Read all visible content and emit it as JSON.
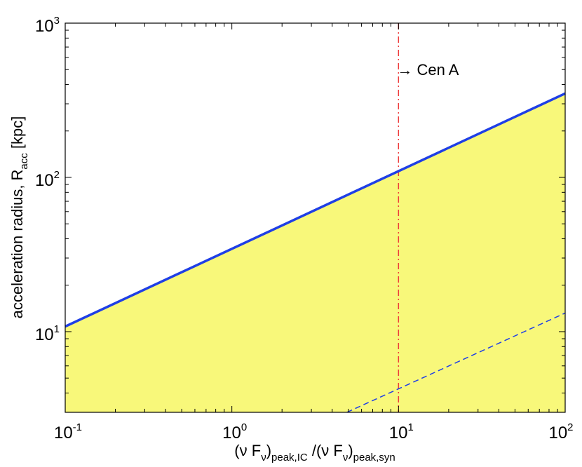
{
  "chart_data": {
    "type": "line",
    "scale": {
      "x": "log",
      "y": "log"
    },
    "xlim": [
      0.1,
      100
    ],
    "ylim": [
      3,
      1000
    ],
    "x_ticks": [
      {
        "value": 0.1,
        "base": "10",
        "exp": "-1"
      },
      {
        "value": 1,
        "base": "10",
        "exp": "0"
      },
      {
        "value": 10,
        "base": "10",
        "exp": "1"
      },
      {
        "value": 100,
        "base": "10",
        "exp": "2"
      }
    ],
    "y_ticks": [
      {
        "value": 10,
        "base": "10",
        "exp": "1"
      },
      {
        "value": 100,
        "base": "10",
        "exp": "2"
      },
      {
        "value": 1000,
        "base": "10",
        "exp": "3"
      }
    ],
    "xlabel": {
      "p1": "(ν F",
      "s1": "ν",
      "p2": ")",
      "s2": "peak,IC",
      "p3": " /(ν F",
      "s3": "ν",
      "p4": ")",
      "s4": "peak,syn"
    },
    "ylabel": {
      "main": "acceleration radius, R",
      "sub": "acc",
      "unit": " [kpc]"
    },
    "series": [
      {
        "style": "solid",
        "color": "#1f3fe6",
        "fill_below": "#f8f87a",
        "x": [
          0.1,
          100
        ],
        "y": [
          10.8,
          350
        ]
      },
      {
        "style": "dashed",
        "color": "#1f3fe6",
        "x": [
          4.9,
          100
        ],
        "y": [
          3.0,
          13.2
        ]
      }
    ],
    "vline": {
      "x": 10,
      "color": "#ee3a3a",
      "style": "dash-dot"
    },
    "annotation": {
      "arrow": "→",
      "text": "Cen A",
      "x": 10,
      "y": 500
    },
    "grid": false
  }
}
